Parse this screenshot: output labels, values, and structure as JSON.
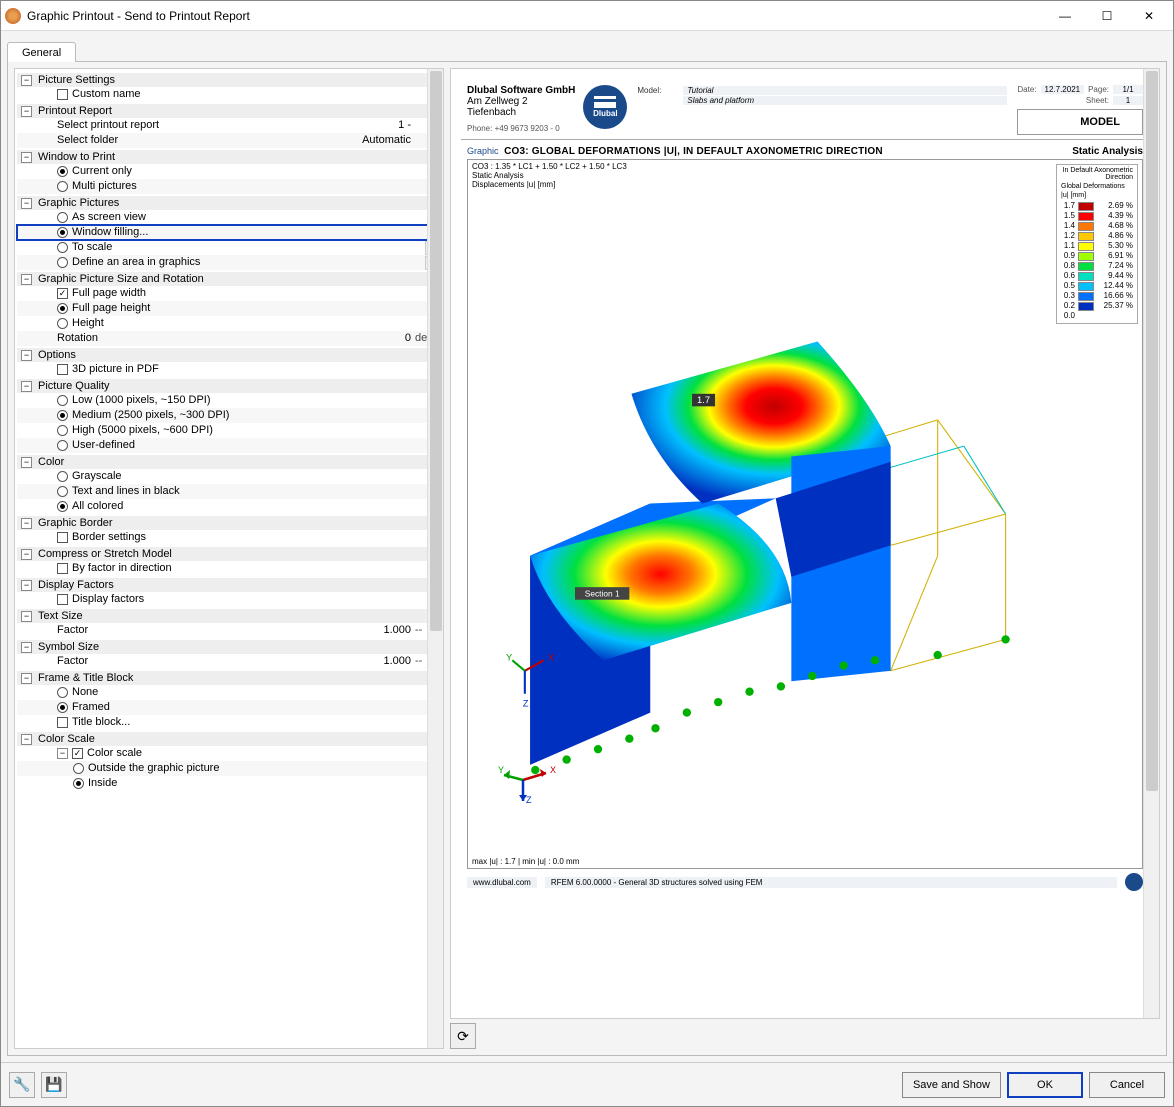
{
  "window": {
    "title": "Graphic Printout - Send to Printout Report",
    "min": "—",
    "max": "☐",
    "close": "✕"
  },
  "tab": "General",
  "sections": {
    "picture_settings": {
      "title": "Picture Settings",
      "custom_name": "Custom name"
    },
    "printout_report": {
      "title": "Printout Report",
      "select_report": "Select printout report",
      "select_report_val": "1 -",
      "select_folder": "Select folder",
      "select_folder_val": "Automatic"
    },
    "window_to_print": {
      "title": "Window to Print",
      "current": "Current only",
      "multi": "Multi pictures"
    },
    "graphic_pictures": {
      "title": "Graphic Pictures",
      "as_screen": "As screen view",
      "window_filling": "Window filling...",
      "to_scale": "To scale",
      "define_area": "Define an area in graphics"
    },
    "size_rotation": {
      "title": "Graphic Picture Size and Rotation",
      "full_width": "Full page width",
      "full_height": "Full page height",
      "height": "Height",
      "rotation": "Rotation",
      "rotation_val": "0",
      "rotation_unit": "deg"
    },
    "options": {
      "title": "Options",
      "threeD": "3D picture in PDF"
    },
    "picture_quality": {
      "title": "Picture Quality",
      "low": "Low (1000 pixels, ~150 DPI)",
      "medium": "Medium (2500 pixels, ~300 DPI)",
      "high": "High (5000 pixels, ~600 DPI)",
      "user": "User-defined"
    },
    "color": {
      "title": "Color",
      "gray": "Grayscale",
      "bw": "Text and lines in black",
      "all": "All colored"
    },
    "border": {
      "title": "Graphic Border",
      "settings": "Border settings"
    },
    "compress": {
      "title": "Compress or Stretch Model",
      "factor": "By factor in direction"
    },
    "display_factors": {
      "title": "Display Factors",
      "factors": "Display factors"
    },
    "text_size": {
      "title": "Text Size",
      "factor": "Factor",
      "val": "1.000",
      "unit": "--"
    },
    "symbol_size": {
      "title": "Symbol Size",
      "factor": "Factor",
      "val": "1.000",
      "unit": "--"
    },
    "frame": {
      "title": "Frame & Title Block",
      "none": "None",
      "framed": "Framed",
      "titleblock": "Title block..."
    },
    "color_scale": {
      "title": "Color Scale",
      "scale": "Color scale",
      "outside": "Outside the graphic picture",
      "inside": "Inside"
    }
  },
  "preview": {
    "company_name": "Dlubal Software GmbH",
    "company_addr1": "Am Zellweg 2",
    "company_addr2": "Tiefenbach",
    "phone": "Phone: +49 9673 9203 - 0",
    "logo_text": "Dlubal",
    "model_lbl": "Model:",
    "model_val": "Tutorial",
    "project_val": "Slabs and platform",
    "date_lbl": "Date:",
    "date_val": "12.7.2021",
    "page_lbl": "Page:",
    "page_val": "1/1",
    "sheet_lbl": "Sheet:",
    "sheet_val": "1",
    "model_box": "MODEL",
    "graphic_tag": "Graphic",
    "graphic_title": "CO3: GLOBAL DEFORMATIONS |U|, IN DEFAULT AXONOMETRIC DIRECTION",
    "analysis": "Static Analysis",
    "co_line": "CO3 : 1.35 * LC1 + 1.50 * LC2 + 1.50 * LC3",
    "sub1": "Static Analysis",
    "sub2": "Displacements |u| [mm]",
    "legend_title": "In Default Axonometric Direction",
    "legend_sub1": "Global Deformations",
    "legend_sub2": "|u| [mm]",
    "legend": [
      {
        "tick": "1.7",
        "color": "#c00000",
        "pct": "2.69 %"
      },
      {
        "tick": "1.5",
        "color": "#ff0000",
        "pct": "4.39 %"
      },
      {
        "tick": "1.4",
        "color": "#ff7800",
        "pct": "4.68 %"
      },
      {
        "tick": "1.2",
        "color": "#ffc800",
        "pct": "4.86 %"
      },
      {
        "tick": "1.1",
        "color": "#ffff00",
        "pct": "5.30 %"
      },
      {
        "tick": "0.9",
        "color": "#a0ff00",
        "pct": "6.91 %"
      },
      {
        "tick": "0.8",
        "color": "#00e040",
        "pct": "7.24 %"
      },
      {
        "tick": "0.6",
        "color": "#00e0c0",
        "pct": "9.44 %"
      },
      {
        "tick": "0.5",
        "color": "#00c0ff",
        "pct": "12.44 %"
      },
      {
        "tick": "0.3",
        "color": "#0070ff",
        "pct": "16.66 %"
      },
      {
        "tick": "0.2",
        "color": "#0030c0",
        "pct": "25.37 %"
      },
      {
        "tick": "0.0",
        "color": "",
        "pct": ""
      }
    ],
    "section_label": "Section 1",
    "peak_label": "1.7",
    "bottom_stats": "max |u| : 1.7 | min |u| : 0.0 mm",
    "footer_site": "www.dlubal.com",
    "footer_app": "RFEM 6.00.0000 - General 3D structures solved using FEM"
  },
  "buttons": {
    "save_show": "Save and Show",
    "ok": "OK",
    "cancel": "Cancel"
  }
}
